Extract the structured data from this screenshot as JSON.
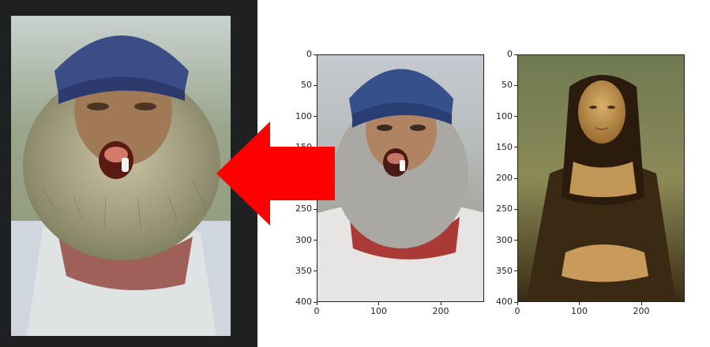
{
  "images": {
    "stylized_output": {
      "icon": "stylized-portrait-image"
    },
    "content_image": {
      "icon": "bearded-man-photo"
    },
    "style_image": {
      "icon": "mona-lisa-painting"
    }
  },
  "content_axes": {
    "y_ticks": [
      "0",
      "50",
      "100",
      "150",
      "200",
      "250",
      "300",
      "350",
      "400"
    ],
    "x_ticks": [
      "0",
      "100",
      "200"
    ],
    "xlim": [
      0,
      270
    ],
    "ylim": [
      400,
      0
    ]
  },
  "style_axes": {
    "y_ticks": [
      "0",
      "50",
      "100",
      "150",
      "200",
      "250",
      "300",
      "350",
      "400"
    ],
    "x_ticks": [
      "0",
      "100",
      "200"
    ],
    "xlim": [
      0,
      270
    ],
    "ylim": [
      400,
      0
    ]
  },
  "colors": {
    "arrow": "#ff0000",
    "panel_bg": "#1f2021"
  },
  "arrow": {
    "icon": "left-arrow-icon"
  }
}
